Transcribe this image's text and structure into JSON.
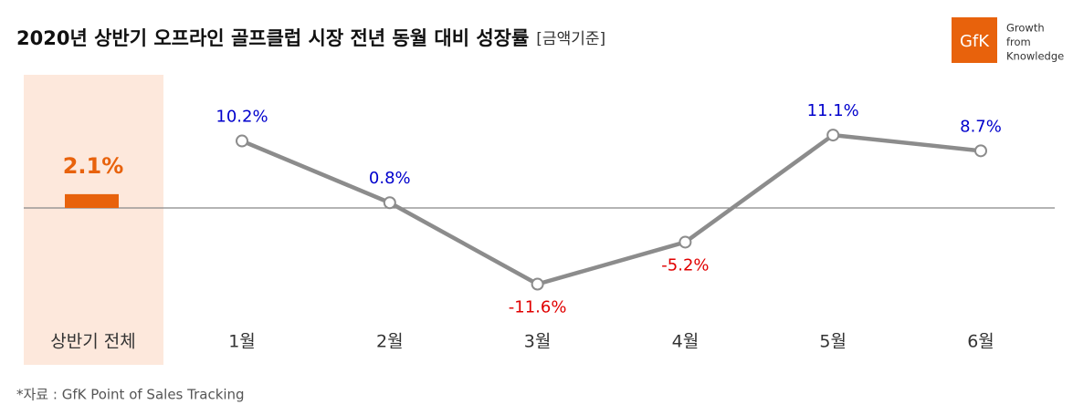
{
  "chart_data": {
    "type": "line",
    "title": "2020년 상반기 오프라인 골프클럽 시장 전년 동월 대비 성장률",
    "subtitle": "[금액기준]",
    "total": {
      "category": "상반기 전체",
      "value": 2.1,
      "value_label": "2.1%",
      "color": "#e8620c",
      "background": "#fde8dc"
    },
    "categories": [
      "1월",
      "2월",
      "3월",
      "4월",
      "5월",
      "6월"
    ],
    "series": [
      {
        "color": "#8c8c8c",
        "values": [
          10.2,
          0.8,
          -11.6,
          -5.2,
          11.1,
          8.7
        ],
        "value_labels": [
          "10.2%",
          "0.8%",
          "-11.6%",
          "-5.2%",
          "11.1%",
          "8.7%"
        ]
      }
    ],
    "positive_label_color": "#0000cc",
    "negative_label_color": "#e00000",
    "ylim": [
      -16,
      18
    ]
  },
  "logo": {
    "mark": "GfK",
    "tagline": [
      "Growth",
      "from",
      "Knowledge"
    ],
    "color": "#e8620c"
  },
  "source": "*자료 : GfK Point of Sales Tracking"
}
